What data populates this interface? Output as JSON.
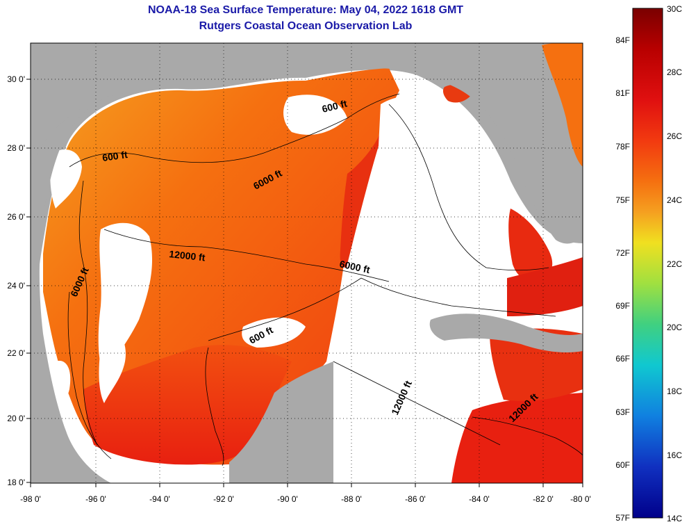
{
  "title": {
    "line1": "NOAA-18 Sea Surface Temperature:  May 04, 2022 1618 GMT",
    "line2": "Rutgers Coastal Ocean Observation Lab"
  },
  "axes": {
    "latitude_labels": [
      "30 0'",
      "28 0'",
      "26 0'",
      "24 0'",
      "22 0'",
      "20 0'",
      "18 0'"
    ],
    "longitude_labels": [
      "-98 0'",
      "-96 0'",
      "-94 0'",
      "-92 0'",
      "-90 0'",
      "-88 0'",
      "-86 0'",
      "-84 0'",
      "-82 0'",
      "-80 0'"
    ]
  },
  "contours": {
    "labels": [
      "600 ft",
      "600 ft",
      "6000 ft",
      "12000 ft",
      "6000 ft",
      "6000 ft",
      "600 ft",
      "12000 ft",
      "12000 ft"
    ]
  },
  "colorbar": {
    "celsius_labels": [
      "30C",
      "28C",
      "26C",
      "24C",
      "22C",
      "20C",
      "18C",
      "16C",
      "14C"
    ],
    "fahrenheit_labels": [
      "84F",
      "81F",
      "78F",
      "75F",
      "72F",
      "69F",
      "66F",
      "63F",
      "60F",
      "57F"
    ],
    "colors": [
      "#7a0000",
      "#b80000",
      "#e01010",
      "#f23a10",
      "#f57010",
      "#f5a020",
      "#f0e020",
      "#a0e040",
      "#40d080",
      "#10c8d0",
      "#1080e0",
      "#1030c0",
      "#00008a"
    ]
  },
  "colors": {
    "land": "#a9a9a9",
    "nodata": "#ffffff",
    "title": "#1a1aa8"
  }
}
